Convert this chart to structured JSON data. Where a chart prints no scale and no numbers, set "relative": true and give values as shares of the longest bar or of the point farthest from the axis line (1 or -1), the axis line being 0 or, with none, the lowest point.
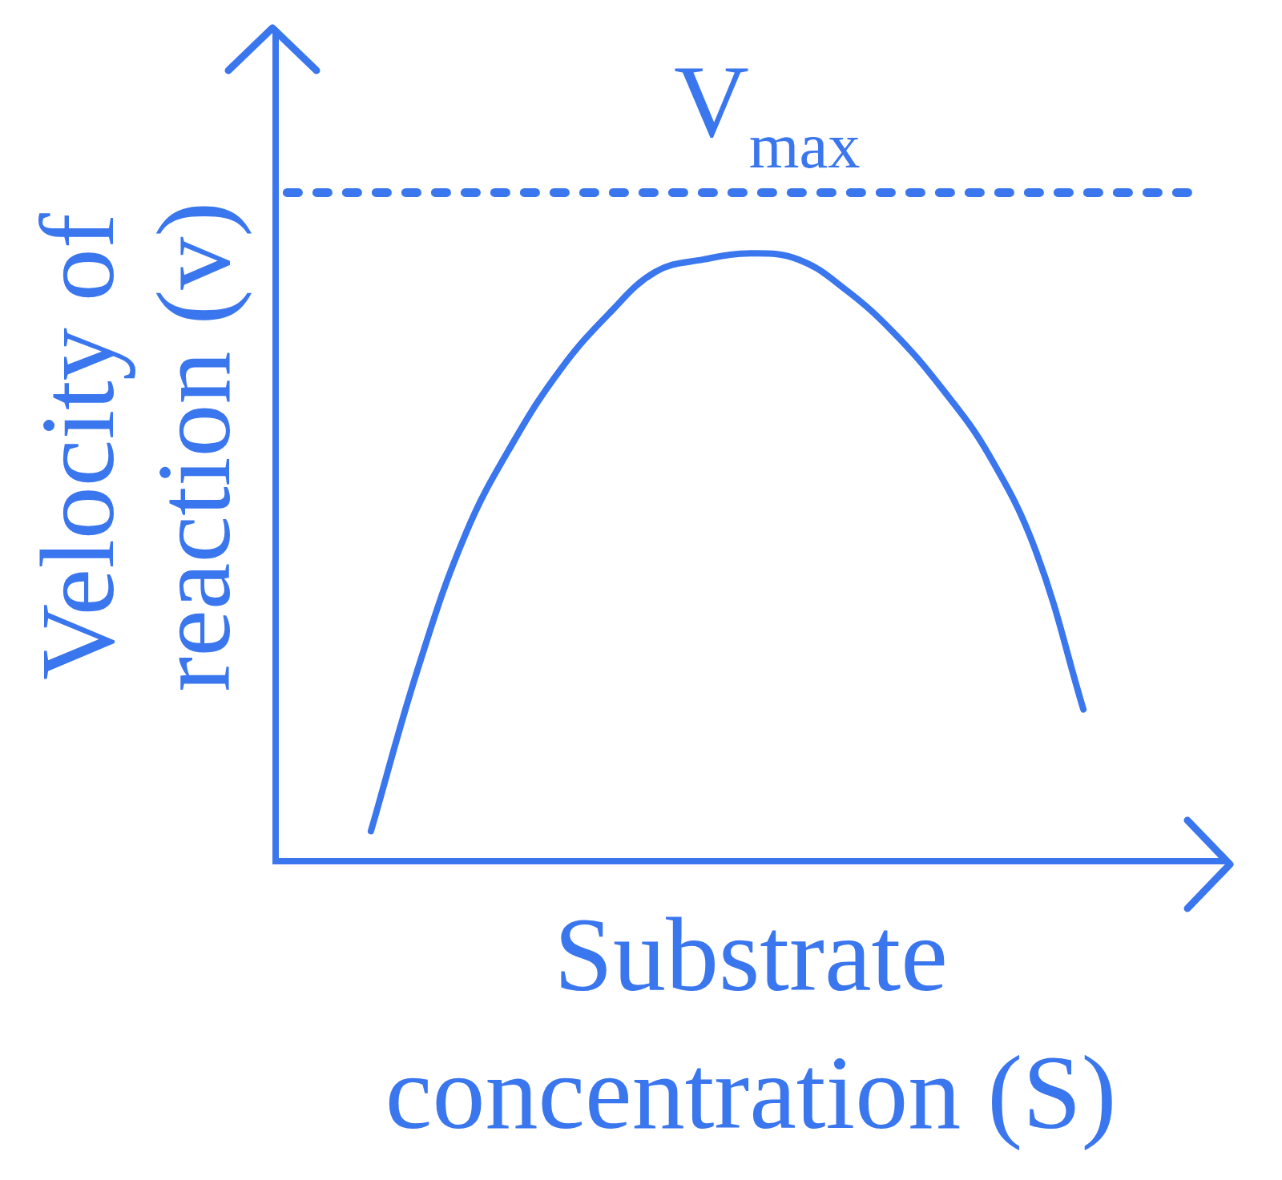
{
  "chart_data": {
    "type": "line",
    "relative": true,
    "xlabel": "Substrate concentration (S)",
    "ylabel": "Velocity of reaction (v)",
    "categories": [
      null,
      null,
      null,
      null,
      null,
      null,
      null,
      null,
      null,
      null,
      null,
      null,
      null,
      null,
      null,
      null,
      null,
      null,
      null,
      null,
      null
    ],
    "series": [
      {
        "color": "#3a76ee",
        "values": [
          null,
          null,
          0.05,
          0.32,
          0.54,
          0.69,
          0.81,
          0.9,
          0.97,
          0.99,
          1.0,
          0.99,
          0.94,
          0.87,
          0.78,
          0.67,
          0.51,
          0.25,
          null,
          null,
          null
        ]
      }
    ],
    "ref_lines": [
      {
        "axis": "y",
        "value": 1.1,
        "label": "V$_{max}$",
        "line_style": "dotted",
        "color": "#3a76ee"
      }
    ],
    "grid": false,
    "legend": false,
    "marker": "none",
    "line_style": "solid"
  }
}
